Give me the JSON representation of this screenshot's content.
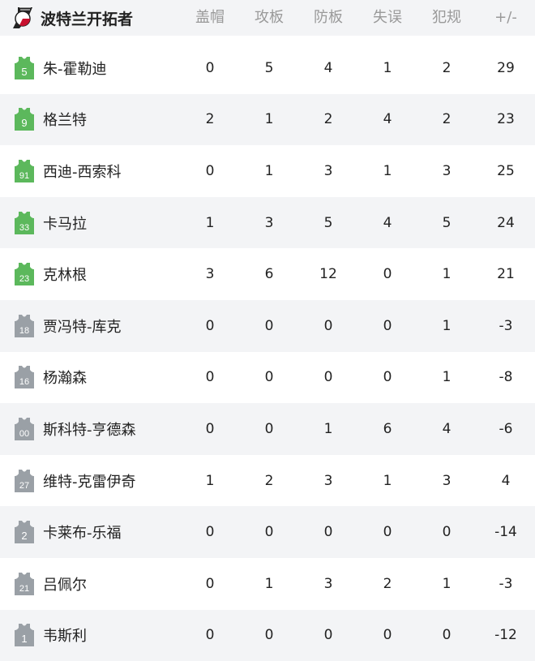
{
  "team": {
    "name": "波特兰开拓者",
    "logo": "trail-blazers-logo"
  },
  "columns": [
    "盖帽",
    "攻板",
    "防板",
    "失误",
    "犯规",
    "+/-"
  ],
  "colors": {
    "starter": "#5cb85c",
    "bench": "#9aa0a6",
    "header_bg": "#f3f4f6"
  },
  "players": [
    {
      "number": "5",
      "name": "朱-霍勒迪",
      "starter": true,
      "stats": [
        "0",
        "5",
        "4",
        "1",
        "2",
        "29"
      ]
    },
    {
      "number": "9",
      "name": "格兰特",
      "starter": true,
      "stats": [
        "2",
        "1",
        "2",
        "4",
        "2",
        "23"
      ]
    },
    {
      "number": "91",
      "name": "西迪-西索科",
      "starter": true,
      "stats": [
        "0",
        "1",
        "3",
        "1",
        "3",
        "25"
      ]
    },
    {
      "number": "33",
      "name": "卡马拉",
      "starter": true,
      "stats": [
        "1",
        "3",
        "5",
        "4",
        "5",
        "24"
      ]
    },
    {
      "number": "23",
      "name": "克林根",
      "starter": true,
      "stats": [
        "3",
        "6",
        "12",
        "0",
        "1",
        "21"
      ]
    },
    {
      "number": "18",
      "name": "贾冯特-库克",
      "starter": false,
      "stats": [
        "0",
        "0",
        "0",
        "0",
        "1",
        "-3"
      ]
    },
    {
      "number": "16",
      "name": "杨瀚森",
      "starter": false,
      "stats": [
        "0",
        "0",
        "0",
        "0",
        "1",
        "-8"
      ]
    },
    {
      "number": "00",
      "name": "斯科特-亨德森",
      "starter": false,
      "stats": [
        "0",
        "0",
        "1",
        "6",
        "4",
        "-6"
      ]
    },
    {
      "number": "27",
      "name": "维特-克雷伊奇",
      "starter": false,
      "stats": [
        "1",
        "2",
        "3",
        "1",
        "3",
        "4"
      ]
    },
    {
      "number": "2",
      "name": "卡莱布-乐福",
      "starter": false,
      "stats": [
        "0",
        "0",
        "0",
        "0",
        "0",
        "-14"
      ]
    },
    {
      "number": "21",
      "name": "吕佩尔",
      "starter": false,
      "stats": [
        "0",
        "1",
        "3",
        "2",
        "1",
        "-3"
      ]
    },
    {
      "number": "1",
      "name": "韦斯利",
      "starter": false,
      "stats": [
        "0",
        "0",
        "0",
        "0",
        "0",
        "-12"
      ]
    }
  ]
}
